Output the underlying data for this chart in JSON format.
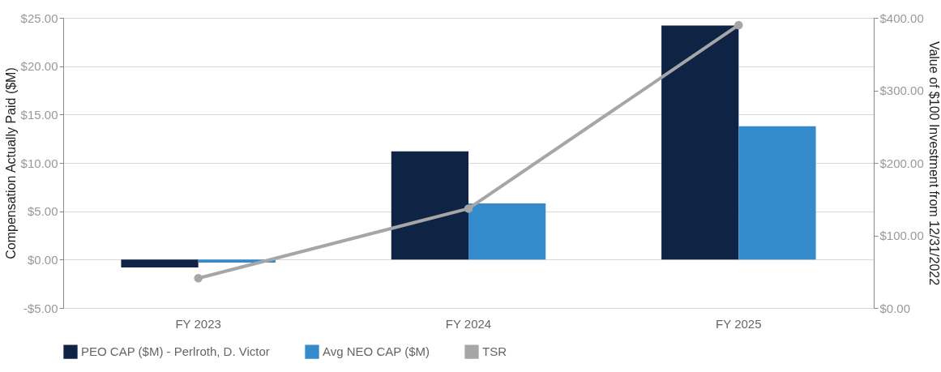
{
  "chart_data": {
    "type": "bar",
    "ylabel": "Compensation Actually Paid ($M)",
    "y2label": "Value of $100 Investment from 12/31/2022",
    "categories": [
      "FY 2023",
      "FY 2024",
      "FY 2025"
    ],
    "series": [
      {
        "name": "PEO CAP ($M) - Perlroth, D. Victor",
        "color": "#0f2445",
        "values": [
          -0.8,
          11.2,
          24.2
        ]
      },
      {
        "name": "Avg NEO CAP ($M)",
        "color": "#348bcb",
        "values": [
          -0.3,
          5.8,
          13.8
        ]
      },
      {
        "name": "TSR",
        "type": "line",
        "axis": "y2",
        "color": "#a6a6a6",
        "marker": "circle",
        "values": [
          41,
          137,
          390
        ]
      }
    ],
    "ylim": [
      -5,
      25
    ],
    "yticks": [
      {
        "value": -5,
        "label": "-$5.00"
      },
      {
        "value": 0,
        "label": "$0.00"
      },
      {
        "value": 5,
        "label": "$5.00"
      },
      {
        "value": 10,
        "label": "$10.00"
      },
      {
        "value": 15,
        "label": "$15.00"
      },
      {
        "value": 20,
        "label": "$20.00"
      },
      {
        "value": 25,
        "label": "$25.00"
      }
    ],
    "y2lim": [
      0,
      400
    ],
    "y2ticks": [
      {
        "value": 0,
        "label": "$0.00"
      },
      {
        "value": 100,
        "label": "$100.00"
      },
      {
        "value": 200,
        "label": "$200.00"
      },
      {
        "value": 300,
        "label": "$300.00"
      },
      {
        "value": 400,
        "label": "$400.00"
      }
    ],
    "grid": "y",
    "legend": "bottom"
  }
}
